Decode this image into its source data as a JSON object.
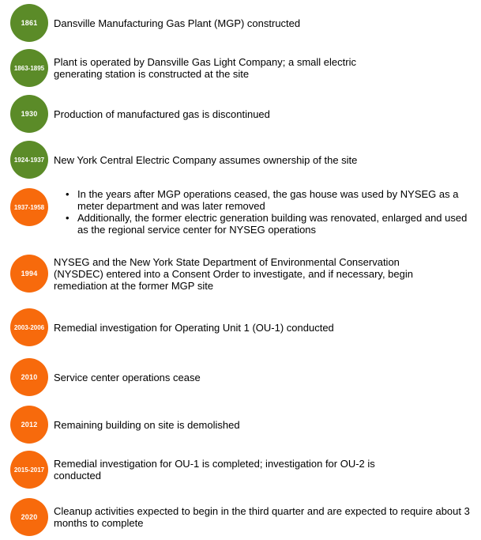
{
  "timeline": {
    "colors": {
      "green": "#5b8b28",
      "orange": "#f76a0c",
      "year_text": "#ffffff",
      "body_text": "#000000"
    },
    "items": [
      {
        "year": "1861",
        "color": "green",
        "lines": [
          "Dansville Manufacturing Gas Plant (MGP) constructed"
        ]
      },
      {
        "year": "1863-1895",
        "color": "green",
        "lines": [
          "Plant is operated by Dansville Gas Light Company; a small electric",
          "generating station is constructed at the site"
        ]
      },
      {
        "year": "1930",
        "color": "green",
        "lines": [
          "Production of manufactured gas is discontinued"
        ]
      },
      {
        "year": "1924-1937",
        "color": "green",
        "lines": [
          "New York Central Electric Company assumes ownership of the site"
        ]
      },
      {
        "year": "1937-1958",
        "color": "orange",
        "bullets": [
          [
            "In the years after MGP operations ceased, the gas house was used by NYSEG as a",
            "meter department and was later removed"
          ],
          [
            "Additionally, the former electric generation building was renovated, enlarged and used",
            "as the regional service center for NYSEG operations"
          ]
        ]
      },
      {
        "year": "1994",
        "color": "orange",
        "lines": [
          "NYSEG and the New York State Department of Environmental Conservation",
          "(NYSDEC) entered into a Consent Order to investigate, and if necessary, begin",
          "remediation at the former MGP site"
        ]
      },
      {
        "year": "2003-2006",
        "color": "orange",
        "lines": [
          "Remedial investigation for Operating Unit 1 (OU-1) conducted"
        ]
      },
      {
        "year": "2010",
        "color": "orange",
        "lines": [
          "Service center operations cease"
        ]
      },
      {
        "year": "2012",
        "color": "orange",
        "lines": [
          "Remaining building on site is demolished"
        ]
      },
      {
        "year": "2015-2017",
        "color": "orange",
        "lines": [
          "Remedial investigation for OU-1 is completed; investigation for OU-2 is",
          "conducted"
        ]
      },
      {
        "year": "2020",
        "color": "orange",
        "lines": [
          "Cleanup activities expected to begin in the third quarter and are expected to require about 3",
          "months to complete"
        ]
      }
    ]
  }
}
